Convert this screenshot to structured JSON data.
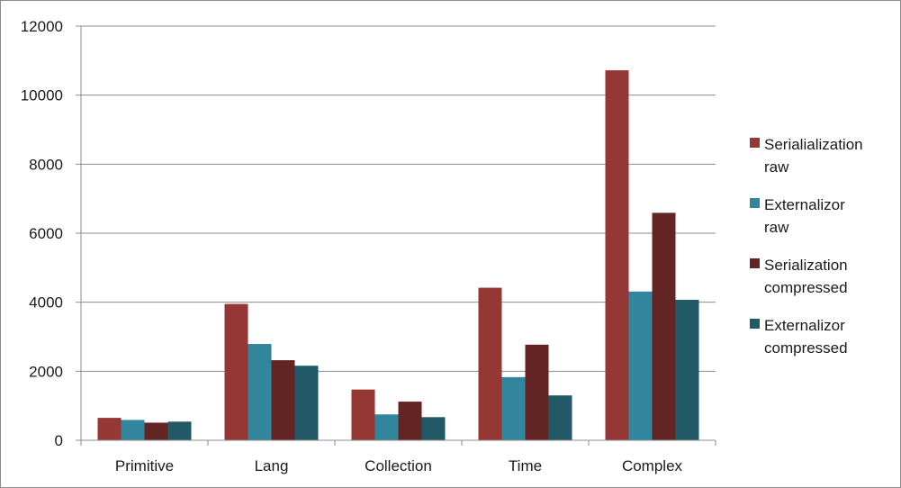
{
  "chart_data": {
    "type": "bar",
    "title": "",
    "xlabel": "",
    "ylabel": "",
    "categories": [
      "Primitive",
      "Lang",
      "Collection",
      "Time",
      "Complex"
    ],
    "series": [
      {
        "name": "Serialialization raw",
        "legend_lines": [
          "Serialialization",
          "raw"
        ],
        "color": "#953735",
        "values": [
          650,
          3950,
          1470,
          4420,
          10720
        ]
      },
      {
        "name": "Externalizor raw",
        "legend_lines": [
          "Externalizor",
          " raw"
        ],
        "color": "#31859c",
        "values": [
          590,
          2790,
          750,
          1830,
          4310
        ]
      },
      {
        "name": "Serialization compressed",
        "legend_lines": [
          "Serialization",
          "compressed"
        ],
        "color": "#632523",
        "values": [
          510,
          2320,
          1120,
          2770,
          6590
        ]
      },
      {
        "name": "Externalizor compressed",
        "legend_lines": [
          "Externalizor",
          "compressed"
        ],
        "color": "#215967",
        "values": [
          540,
          2160,
          670,
          1300,
          4070
        ]
      }
    ],
    "ylim": [
      0,
      12000
    ],
    "yticks": [
      0,
      2000,
      4000,
      6000,
      8000,
      10000,
      12000
    ],
    "ytick_labels": [
      "0",
      "2000",
      "4000",
      "6000",
      "8000",
      "10000",
      "12000"
    ],
    "grid": true,
    "legend_position": "right"
  }
}
